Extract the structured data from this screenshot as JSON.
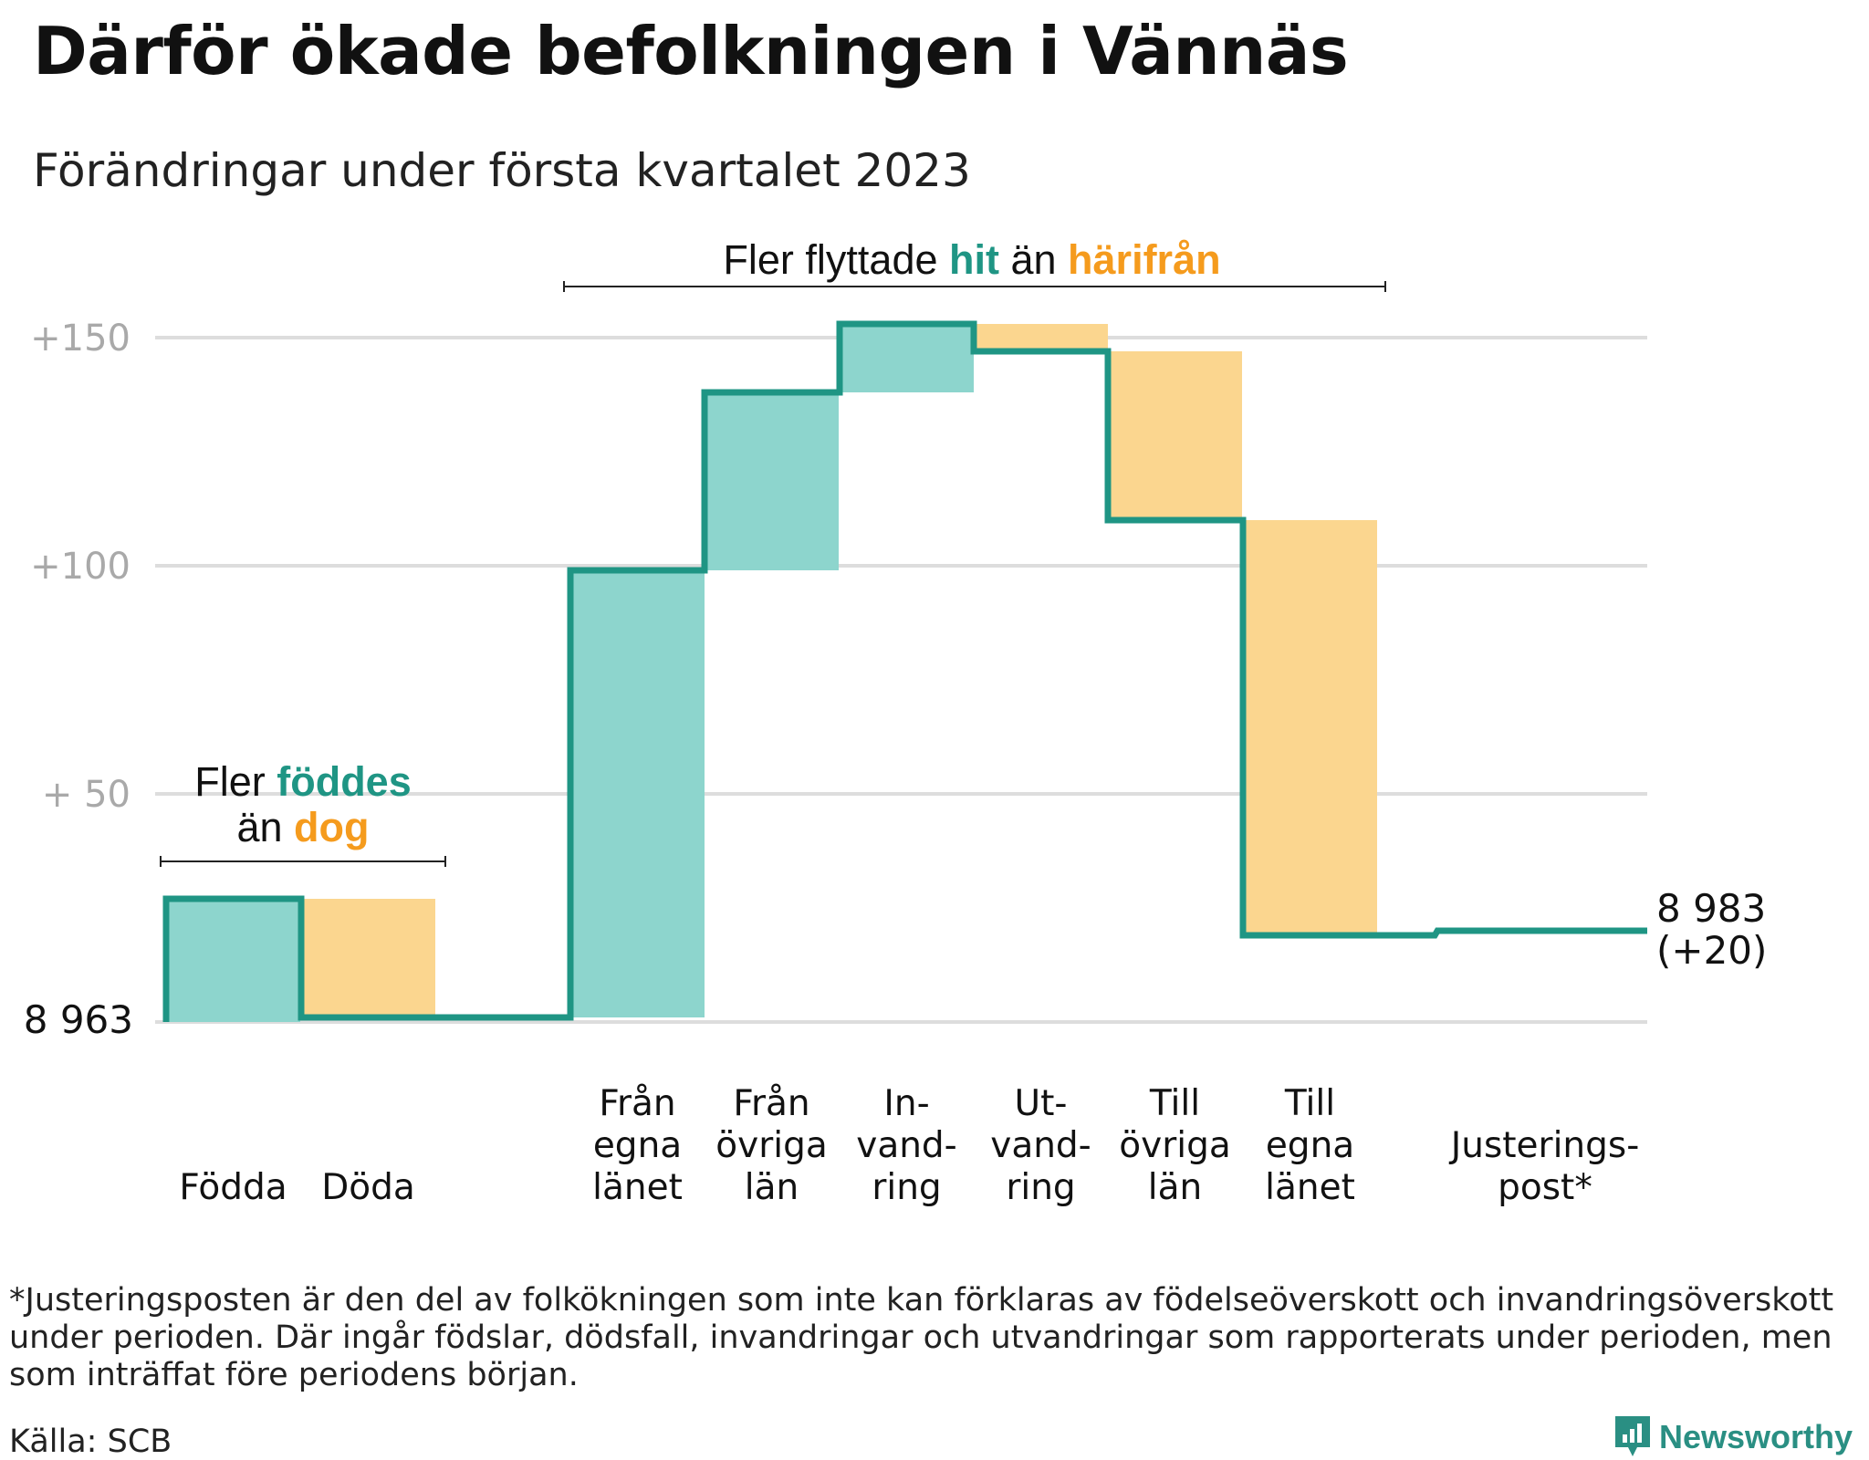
{
  "title": "Därför ökade befolkningen i Vännäs",
  "subtitle": "Förändringar under första kvartalet 2023",
  "colors": {
    "teal": "#1f9584",
    "teal_fill": "#8dd5cd",
    "orange": "#f59b1d",
    "orange_fill": "#fbd68f",
    "grid": "#dddddd",
    "tick": "#a9a9a9"
  },
  "chart_data": {
    "type": "waterfall",
    "start_label": "8 963",
    "end_label": [
      "8 983",
      "(+20)"
    ],
    "y_ticks": [
      {
        "value": 150,
        "label": "+150"
      },
      {
        "value": 100,
        "label": "+100"
      },
      {
        "value": 50,
        "label": "+ 50"
      }
    ],
    "ylim": [
      0,
      150
    ],
    "grid": true,
    "steps": [
      {
        "category": [
          "Födda"
        ],
        "value": 27,
        "kind": "gain"
      },
      {
        "category": [
          "Döda"
        ],
        "value": -26,
        "kind": "loss"
      },
      {
        "category": [
          "Från",
          "egna",
          "länet"
        ],
        "value": 98,
        "kind": "gain"
      },
      {
        "category": [
          "Från",
          "övriga",
          "län"
        ],
        "value": 39,
        "kind": "gain"
      },
      {
        "category": [
          "In-",
          "vand-",
          "ring"
        ],
        "value": 15,
        "kind": "gain"
      },
      {
        "category": [
          "Ut-",
          "vand-",
          "ring"
        ],
        "value": -6,
        "kind": "loss"
      },
      {
        "category": [
          "Till",
          "övriga",
          "län"
        ],
        "value": -37,
        "kind": "loss"
      },
      {
        "category": [
          "Till",
          "egna",
          "länet"
        ],
        "value": -91,
        "kind": "loss"
      },
      {
        "category": [
          "Justerings-",
          "post*"
        ],
        "value": 1,
        "kind": "adjust"
      }
    ],
    "annotations": [
      {
        "parts": [
          {
            "text": "Fler ",
            "color": "dark"
          },
          {
            "text": "föddes",
            "color": "teal"
          }
        ],
        "line2": [
          {
            "text": "än ",
            "color": "dark"
          },
          {
            "text": "dog",
            "color": "orange"
          }
        ]
      },
      {
        "parts": [
          {
            "text": "Fler flyttade ",
            "color": "dark"
          },
          {
            "text": "hit",
            "color": "teal"
          },
          {
            "text": " än ",
            "color": "dark"
          },
          {
            "text": "härifrån",
            "color": "orange"
          }
        ]
      }
    ]
  },
  "footnote": "*Justeringsposten är den del av folkökningen som inte kan förklaras av födelseöverskott och invandringsöverskott under perioden. Där ingår födslar, dödsfall, invandringar och utvandringar som rapporterats under perioden, men som inträffat före periodens början.",
  "source": "Källa: SCB",
  "brand": {
    "name": "Newsworthy",
    "icon": "newsworthy-logo-icon"
  }
}
